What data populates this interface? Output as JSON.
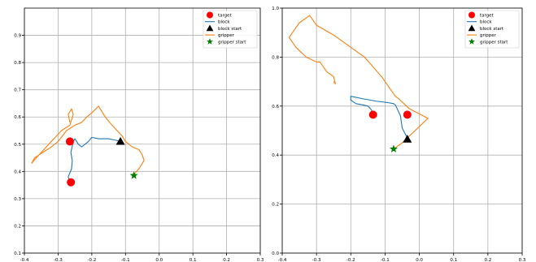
{
  "chart_data": [
    {
      "type": "line",
      "title": "",
      "xlabel": "",
      "ylabel": "",
      "xlim": [
        -0.4,
        0.3
      ],
      "ylim": [
        0.1,
        1.0
      ],
      "xticks": [
        -0.4,
        -0.3,
        -0.2,
        -0.1,
        0.0,
        0.1,
        0.2,
        0.3
      ],
      "yticks": [
        0.1,
        0.2,
        0.3,
        0.4,
        0.5,
        0.6,
        0.7,
        0.8,
        0.9
      ],
      "grid": true,
      "legend": {
        "placement": "top-right",
        "entries": [
          "target",
          "block",
          "block start",
          "gripper",
          "gripper start"
        ]
      },
      "series": [
        {
          "name": "target",
          "kind": "points",
          "marker": "circle",
          "color": "#ff0000",
          "x": [
            -0.265,
            -0.262
          ],
          "y": [
            0.51,
            0.36
          ]
        },
        {
          "name": "block",
          "kind": "line",
          "color": "#1f77b4",
          "x": [
            -0.265,
            -0.27,
            -0.26,
            -0.258,
            -0.262,
            -0.255,
            -0.25,
            -0.24,
            -0.23,
            -0.22,
            -0.21,
            -0.2,
            -0.18,
            -0.15,
            -0.13,
            -0.115
          ],
          "y": [
            0.36,
            0.38,
            0.41,
            0.44,
            0.47,
            0.51,
            0.52,
            0.5,
            0.49,
            0.5,
            0.51,
            0.525,
            0.52,
            0.52,
            0.515,
            0.51
          ]
        },
        {
          "name": "block start",
          "kind": "points",
          "marker": "triangle",
          "color": "#000000",
          "x": [
            -0.115
          ],
          "y": [
            0.51
          ]
        },
        {
          "name": "gripper",
          "kind": "line",
          "color": "#ff7f0e",
          "x": [
            -0.075,
            -0.06,
            -0.045,
            -0.05,
            -0.06,
            -0.08,
            -0.1,
            -0.11,
            -0.125,
            -0.14,
            -0.16,
            -0.18,
            -0.2,
            -0.215,
            -0.23,
            -0.25,
            -0.275,
            -0.3,
            -0.32,
            -0.345,
            -0.37,
            -0.378,
            -0.372,
            -0.35,
            -0.32,
            -0.29,
            -0.265,
            -0.255,
            -0.26,
            -0.27,
            -0.265
          ],
          "y": [
            0.39,
            0.41,
            0.44,
            0.46,
            0.48,
            0.49,
            0.51,
            0.53,
            0.55,
            0.57,
            0.6,
            0.64,
            0.615,
            0.6,
            0.58,
            0.57,
            0.55,
            0.51,
            0.49,
            0.47,
            0.45,
            0.43,
            0.44,
            0.47,
            0.51,
            0.55,
            0.57,
            0.61,
            0.63,
            0.61,
            0.58
          ]
        },
        {
          "name": "gripper start",
          "kind": "points",
          "marker": "star",
          "color": "#008000",
          "x": [
            -0.075
          ],
          "y": [
            0.385
          ]
        }
      ]
    },
    {
      "type": "line",
      "title": "",
      "xlabel": "",
      "ylabel": "",
      "xlim": [
        -0.4,
        0.3
      ],
      "ylim": [
        0.0,
        1.0
      ],
      "xticks": [
        -0.4,
        -0.3,
        -0.2,
        -0.1,
        0.0,
        0.1,
        0.2,
        0.3
      ],
      "yticks": [
        0.0,
        0.2,
        0.4,
        0.6,
        0.8,
        1.0
      ],
      "grid": true,
      "legend": {
        "placement": "top-right",
        "entries": [
          "target",
          "block",
          "block start",
          "gripper",
          "gripper start"
        ]
      },
      "series": [
        {
          "name": "target",
          "kind": "points",
          "marker": "circle",
          "color": "#ff0000",
          "x": [
            -0.135,
            -0.035
          ],
          "y": [
            0.565,
            0.565
          ]
        },
        {
          "name": "block",
          "kind": "line",
          "color": "#1f77b4",
          "x": [
            -0.035,
            -0.05,
            -0.055,
            -0.065,
            -0.07,
            -0.075,
            -0.095,
            -0.125,
            -0.165,
            -0.2,
            -0.2,
            -0.195,
            -0.185,
            -0.165,
            -0.15,
            -0.14,
            -0.135
          ],
          "y": [
            0.47,
            0.51,
            0.56,
            0.59,
            0.605,
            0.61,
            0.615,
            0.62,
            0.63,
            0.64,
            0.625,
            0.62,
            0.61,
            0.605,
            0.6,
            0.585,
            0.565
          ]
        },
        {
          "name": "block start",
          "kind": "points",
          "marker": "triangle",
          "color": "#000000",
          "x": [
            -0.035
          ],
          "y": [
            0.465
          ]
        },
        {
          "name": "gripper",
          "kind": "line",
          "color": "#ff7f0e",
          "x": [
            -0.07,
            -0.05,
            -0.02,
            0.01,
            0.025,
            -0.03,
            -0.06,
            -0.07,
            -0.11,
            -0.16,
            -0.21,
            -0.25,
            -0.3,
            -0.32,
            -0.35,
            -0.38,
            -0.36,
            -0.33,
            -0.3,
            -0.29,
            -0.27,
            -0.25,
            -0.245,
            -0.25
          ],
          "y": [
            0.43,
            0.45,
            0.49,
            0.53,
            0.55,
            0.59,
            0.63,
            0.64,
            0.72,
            0.8,
            0.85,
            0.89,
            0.93,
            0.97,
            0.94,
            0.88,
            0.84,
            0.8,
            0.78,
            0.78,
            0.74,
            0.72,
            0.69,
            0.7
          ]
        },
        {
          "name": "gripper start",
          "kind": "points",
          "marker": "star",
          "color": "#008000",
          "x": [
            -0.075
          ],
          "y": [
            0.425
          ]
        }
      ]
    }
  ]
}
